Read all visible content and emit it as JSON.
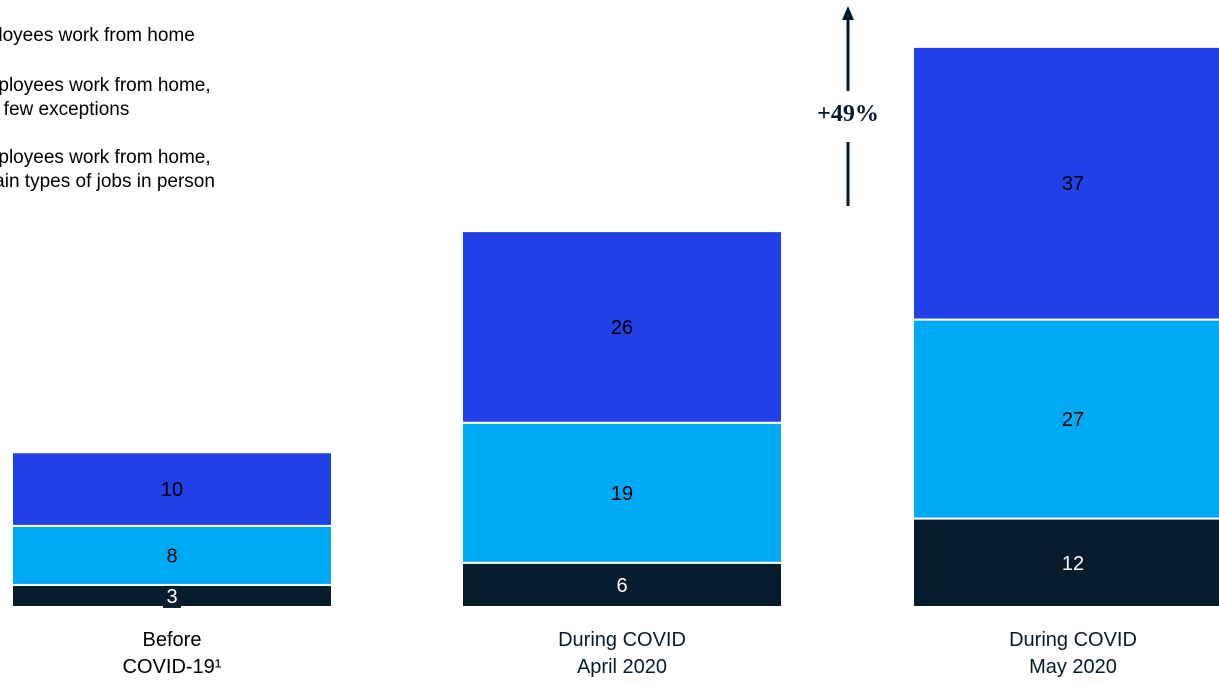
{
  "chart_data": {
    "type": "bar",
    "stacked": true,
    "categories": [
      [
        "Before",
        "COVID-19¹"
      ],
      [
        "During COVID",
        "April 2020"
      ],
      [
        "During COVID",
        "May 2020"
      ]
    ],
    "series": [
      {
        "name": "…employees work from home, certain types of jobs in person",
        "color": "#051c2c",
        "values": [
          3,
          6,
          12
        ]
      },
      {
        "name": "…employees work from home, very few exceptions",
        "color": "#00a9f4",
        "values": [
          8,
          19,
          27
        ]
      },
      {
        "name": "…mployees work from home",
        "color": "#2140e8",
        "values": [
          10,
          26,
          37
        ]
      }
    ],
    "legend_lines": [
      [
        "mployees work from home"
      ],
      [
        "employees work from home,",
        "ery few exceptions"
      ],
      [
        "employees work from home,",
        "ertain types of jobs in person"
      ]
    ],
    "annotation": {
      "text": "+49%",
      "color": "#06192b"
    },
    "category_label_colors": [
      "#000000",
      "#051c2c",
      "#051c2c"
    ],
    "legend": "top-left",
    "grid": false
  }
}
